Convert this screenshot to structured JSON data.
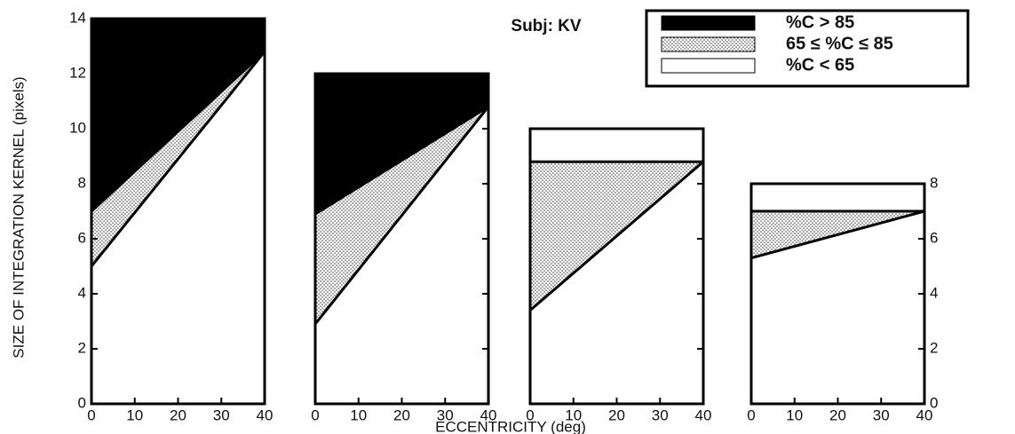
{
  "title": "Subj: KV",
  "ylabel": "SIZE OF INTEGRATION KERNEL (pixels)",
  "xlabel": "ECCENTRICITY (deg)",
  "legend": {
    "position": "upper right",
    "items": [
      {
        "label": "%C > 85",
        "color": "#000000"
      },
      {
        "label": "65 ≤ %C ≤ 85",
        "color": "dots"
      },
      {
        "label": "%C < 65",
        "color": "#ffffff"
      }
    ]
  },
  "chart_data": [
    {
      "type": "area",
      "x": [
        0,
        40
      ],
      "xlim": [
        0,
        40
      ],
      "xticks": [
        0,
        10,
        20,
        30,
        40
      ],
      "ylim": [
        0,
        14
      ],
      "yticks": [
        0,
        2,
        4,
        6,
        8,
        10,
        12,
        14
      ],
      "ytick_side": "left",
      "ytick_labels": true,
      "top_color": "#000000",
      "boundaries": {
        "upper": [
          7.0,
          12.8
        ],
        "lower": [
          5.0,
          12.8
        ]
      }
    },
    {
      "type": "area",
      "x": [
        0,
        40
      ],
      "xlim": [
        0,
        40
      ],
      "xticks": [
        0,
        10,
        20,
        30,
        40
      ],
      "ylim": [
        0,
        12
      ],
      "yticks": [
        0,
        2,
        4,
        6,
        8,
        10
      ],
      "ytick_side": "right",
      "ytick_labels": false,
      "top_color": "#000000",
      "boundaries": {
        "upper": [
          6.9,
          10.8
        ],
        "lower": [
          2.9,
          10.8
        ]
      }
    },
    {
      "type": "area",
      "x": [
        0,
        40
      ],
      "xlim": [
        0,
        40
      ],
      "xticks": [
        0,
        10,
        20,
        30,
        40
      ],
      "ylim": [
        0,
        10
      ],
      "yticks": [
        0,
        2,
        4,
        6,
        8
      ],
      "ytick_side": "right",
      "ytick_labels": false,
      "top_color": "#ffffff",
      "boundaries": {
        "upper": [
          8.8,
          8.8
        ],
        "lower": [
          3.4,
          8.8
        ]
      }
    },
    {
      "type": "area",
      "x": [
        0,
        40
      ],
      "xlim": [
        0,
        40
      ],
      "xticks": [
        0,
        10,
        20,
        30,
        40
      ],
      "ylim": [
        0,
        8
      ],
      "yticks": [
        0,
        2,
        4,
        6,
        8
      ],
      "ytick_side": "right",
      "ytick_labels": true,
      "top_color": "#ffffff",
      "boundaries": {
        "upper": [
          7.0,
          7.0
        ],
        "lower": [
          5.3,
          7.0
        ]
      }
    }
  ]
}
